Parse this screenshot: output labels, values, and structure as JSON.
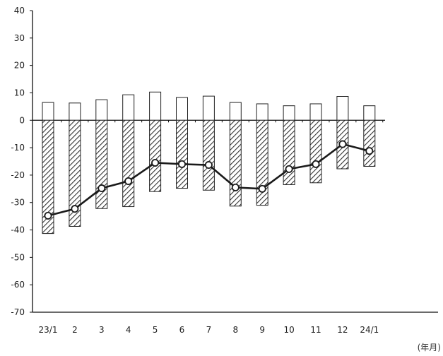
{
  "chart_data": {
    "type": "bar",
    "categories": [
      "23/1",
      "2",
      "3",
      "4",
      "5",
      "6",
      "7",
      "8",
      "9",
      "10",
      "11",
      "12",
      "24/1"
    ],
    "ylim": [
      -70,
      40
    ],
    "yticks": [
      40,
      30,
      20,
      10,
      0,
      -10,
      -20,
      -30,
      -40,
      -50,
      -60,
      -70
    ],
    "unit_label": "(年月)",
    "series": [
      {
        "kind": "bar",
        "style": "open",
        "values": [
          6.5,
          6.3,
          7.5,
          9.3,
          10.3,
          8.3,
          8.8,
          6.5,
          6.0,
          5.3,
          6.0,
          8.7,
          5.3
        ]
      },
      {
        "kind": "bar",
        "style": "hatched",
        "values": [
          -41.3,
          -38.7,
          -32.2,
          -31.5,
          -26.0,
          -24.8,
          -25.5,
          -31.3,
          -31.0,
          -23.5,
          -22.8,
          -17.7,
          -16.8
        ]
      },
      {
        "kind": "line",
        "style": "marker",
        "values": [
          -34.8,
          -32.3,
          -24.8,
          -22.2,
          -15.5,
          -16.0,
          -16.3,
          -24.5,
          -25.0,
          -17.8,
          -16.0,
          -8.7,
          -11.2
        ]
      }
    ],
    "colors": {
      "axis": "#111111",
      "bar_edge": "#222222",
      "open_fill": "#ffffff",
      "hatch": "#333333",
      "line": "#1a1a1a",
      "marker_fill": "#ffffff"
    }
  }
}
